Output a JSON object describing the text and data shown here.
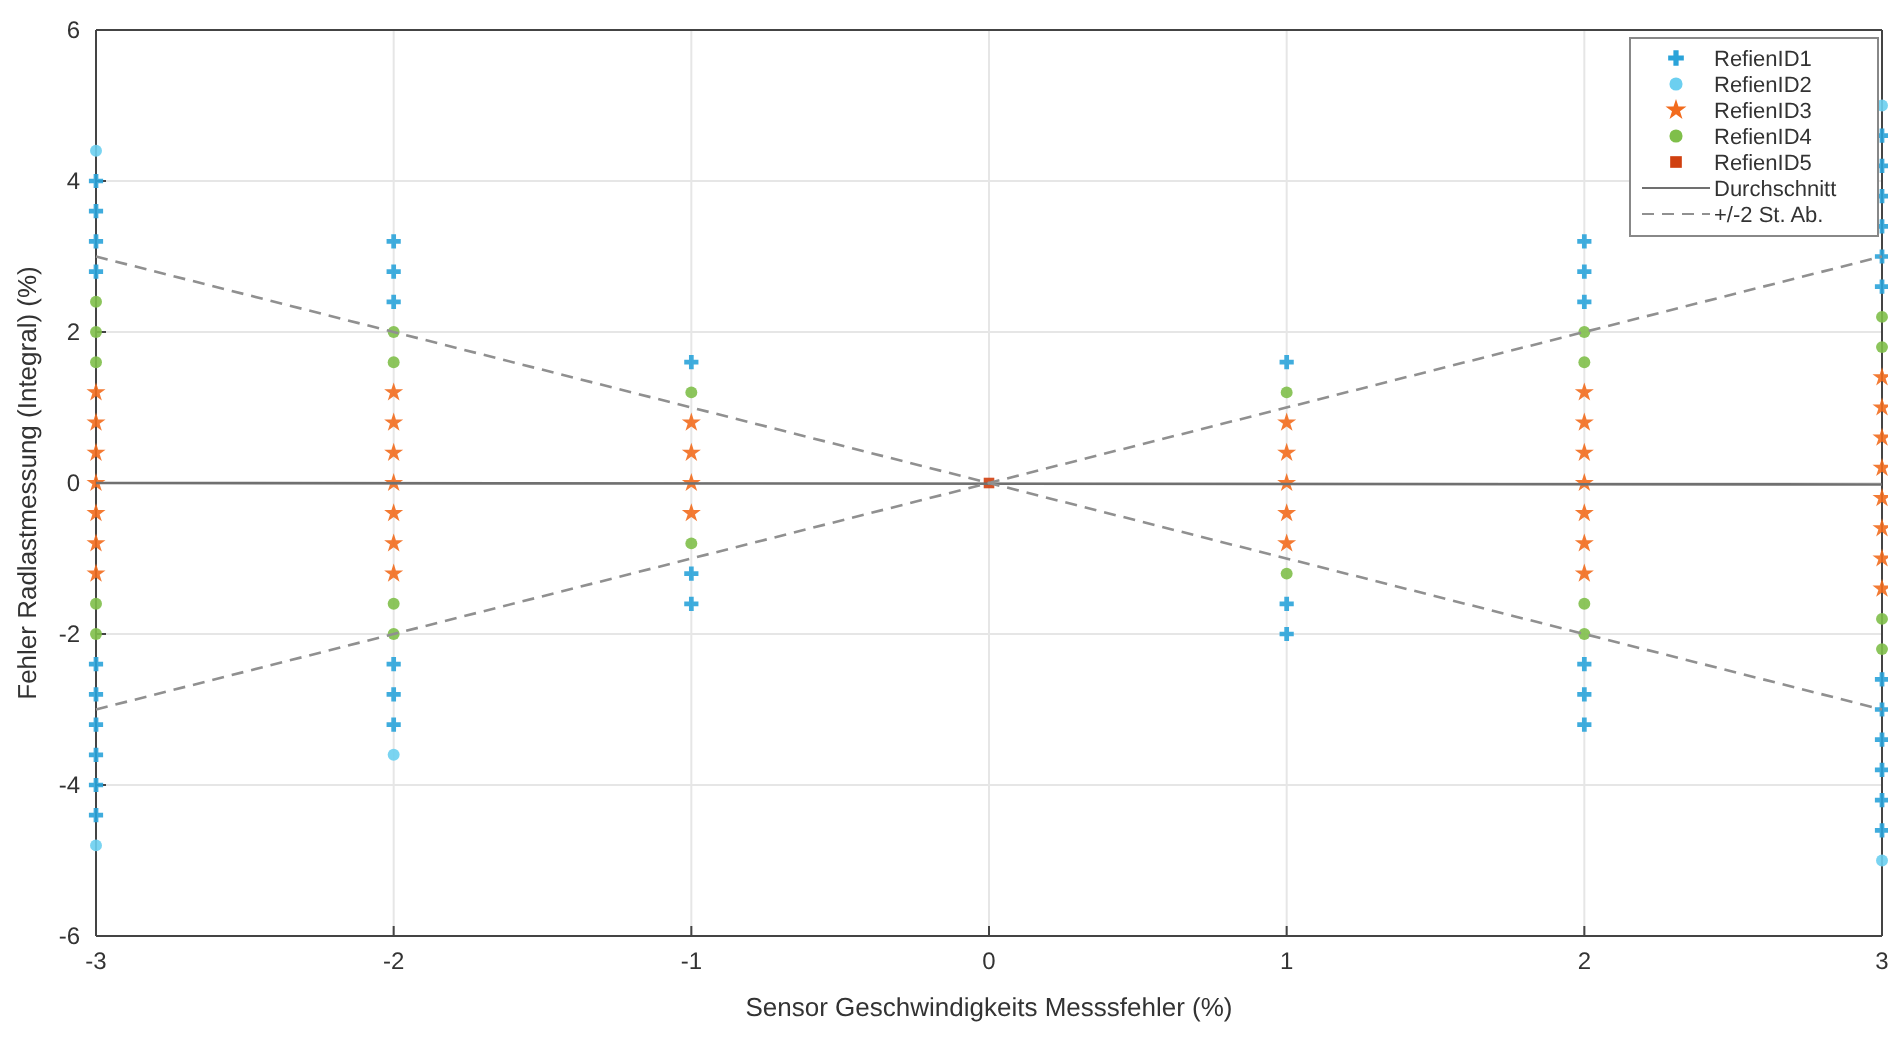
{
  "chart_data": {
    "type": "scatter",
    "xlabel": "Sensor Geschwindigkeits Messsfehler (%)",
    "ylabel": "Fehler Radlastmessung (Integral) (%)",
    "xlim": [
      -3,
      3
    ],
    "xticks": [
      -3,
      -2,
      -1,
      0,
      1,
      2,
      3
    ],
    "ylim": [
      -6,
      6
    ],
    "yticks": [
      -6,
      -4,
      -2,
      0,
      2,
      4,
      6
    ],
    "grid": true,
    "legend": "top right",
    "series": [
      {
        "name": "RefienID1",
        "color": "#2aa3d9",
        "marker": "cross",
        "x": [
          -3,
          -3,
          -3,
          -3,
          -3,
          -3,
          -3,
          -3,
          -3,
          -3,
          -2,
          -2,
          -2,
          -2,
          -2,
          -2,
          -1,
          -1,
          -1,
          1,
          1,
          1,
          2,
          2,
          2,
          2,
          2,
          2,
          3,
          3,
          3,
          3,
          3,
          3,
          3,
          3,
          3,
          3,
          3,
          3
        ],
        "values": [
          -4.4,
          -4.0,
          -3.6,
          -3.2,
          -2.8,
          -2.4,
          2.8,
          3.2,
          3.6,
          4.0,
          -3.2,
          -2.8,
          -2.4,
          2.4,
          2.8,
          3.2,
          -1.6,
          -1.2,
          1.6,
          -2.0,
          -1.6,
          1.6,
          -3.2,
          -2.8,
          -2.4,
          2.4,
          2.8,
          3.2,
          -4.6,
          -4.2,
          -3.8,
          -3.4,
          -3.0,
          -2.6,
          2.6,
          3.0,
          3.4,
          3.8,
          4.2,
          4.6
        ]
      },
      {
        "name": "RefienID2",
        "color": "#6ccff0",
        "marker": "circle",
        "x": [
          -3,
          -3,
          -2,
          3,
          3
        ],
        "values": [
          -4.8,
          4.4,
          -3.6,
          -5.0,
          5.0
        ]
      },
      {
        "name": "RefienID3",
        "color": "#f26b1d",
        "marker": "star",
        "x": [
          -3,
          -3,
          -3,
          -3,
          -3,
          -3,
          -3,
          -2,
          -2,
          -2,
          -2,
          -2,
          -2,
          -2,
          -1,
          -1,
          -1,
          -1,
          1,
          1,
          1,
          1,
          1,
          2,
          2,
          2,
          2,
          2,
          2,
          2,
          3,
          3,
          3,
          3,
          3,
          3,
          3,
          3
        ],
        "values": [
          -1.2,
          -0.8,
          -0.4,
          0,
          0.4,
          0.8,
          1.2,
          -1.2,
          -0.8,
          -0.4,
          0,
          0.4,
          0.8,
          1.2,
          -0.4,
          0,
          0.4,
          0.8,
          -0.8,
          -0.4,
          0,
          0.4,
          0.8,
          -1.2,
          -0.8,
          -0.4,
          0,
          0.4,
          0.8,
          1.2,
          -1.4,
          -1.0,
          -0.6,
          -0.2,
          0.2,
          0.6,
          1.0,
          1.4
        ]
      },
      {
        "name": "RefienID4",
        "color": "#7fbf4a",
        "marker": "circle",
        "x": [
          -3,
          -3,
          -3,
          -3,
          -3,
          -2,
          -2,
          -2,
          -2,
          -1,
          -1,
          1,
          1,
          2,
          2,
          2,
          2,
          3,
          3,
          3,
          3
        ],
        "values": [
          -2.0,
          -1.6,
          1.6,
          2.0,
          2.4,
          -2.0,
          -1.6,
          1.6,
          2.0,
          -0.8,
          1.2,
          -1.2,
          1.2,
          -2.0,
          -1.6,
          1.6,
          2.0,
          -2.2,
          -1.8,
          1.8,
          2.2
        ]
      },
      {
        "name": "RefienID5",
        "color": "#d04010",
        "marker": "square",
        "x": [
          0
        ],
        "values": [
          0
        ]
      },
      {
        "name": "Durchschnitt",
        "type": "line",
        "color": "#707070",
        "line_style": "solid",
        "x": [
          -3,
          3
        ],
        "values": [
          0,
          -0.02
        ]
      },
      {
        "name": "+/-2 St. Ab.",
        "type": "line",
        "color": "#909090",
        "line_style": "dashed",
        "x": [
          -3,
          0,
          3
        ],
        "values": [
          3,
          0,
          -3
        ]
      },
      {
        "type": "line",
        "color": "#909090",
        "line_style": "dashed",
        "x": [
          -3,
          0,
          3
        ],
        "values": [
          -3,
          0,
          3
        ]
      }
    ]
  }
}
